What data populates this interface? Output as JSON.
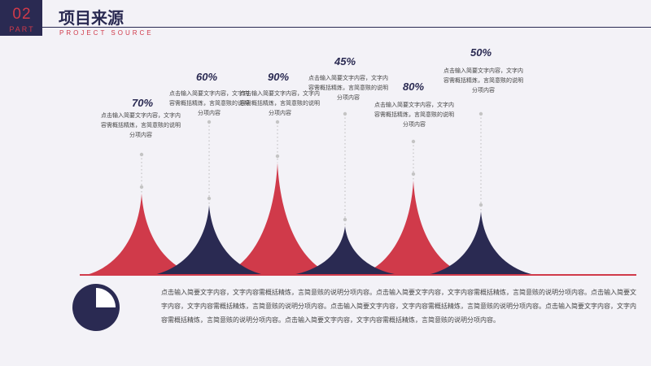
{
  "header": {
    "number": "02",
    "part": "PART",
    "title": "项目来源",
    "subtitle": "PROJECT SOURCE"
  },
  "colors": {
    "accent": "#d03a4a",
    "navy": "#2a2a52",
    "background": "#f3f2f7"
  },
  "peaks": [
    {
      "percent": "70%",
      "desc": "点击输入简要文字内容，文字内容需概括精炼，言简意赅的说明分项内容",
      "color": "#d03a4a"
    },
    {
      "percent": "60%",
      "desc": "点击输入简要文字内容，文字内容需概括精炼，言简意赅的说明分项内容",
      "color": "#2a2a52"
    },
    {
      "percent": "90%",
      "desc": "点击输入简要文字内容，文字内容需概括精炼，言简意赅的说明分项内容",
      "color": "#d03a4a"
    },
    {
      "percent": "45%",
      "desc": "点击输入简要文字内容，文字内容需概括精炼，言简意赅的说明分项内容",
      "color": "#2a2a52"
    },
    {
      "percent": "80%",
      "desc": "点击输入简要文字内容，文字内容需概括精炼，言简意赅的说明分项内容",
      "color": "#d03a4a"
    },
    {
      "percent": "50%",
      "desc": "点击输入简要文字内容，文字内容需概括精炼，言简意赅的说明分项内容",
      "color": "#2a2a52"
    }
  ],
  "paragraph": "点击输入简要文字内容，文字内容需概括精炼，言简意赅的说明分项内容。点击输入简要文字内容，文字内容需概括精炼，言简意赅的说明分项内容。点击输入简要文字内容，文字内容需概括精炼，言简意赅的说明分项内容。点击输入简要文字内容，文字内容需概括精炼，言简意赅的说明分项内容。点击输入简要文字内容，文字内容需概括精炼，言简意赅的说明分项内容。点击输入简要文字内容，文字内容需概括精炼，言简意赅的说明分项内容。"
}
